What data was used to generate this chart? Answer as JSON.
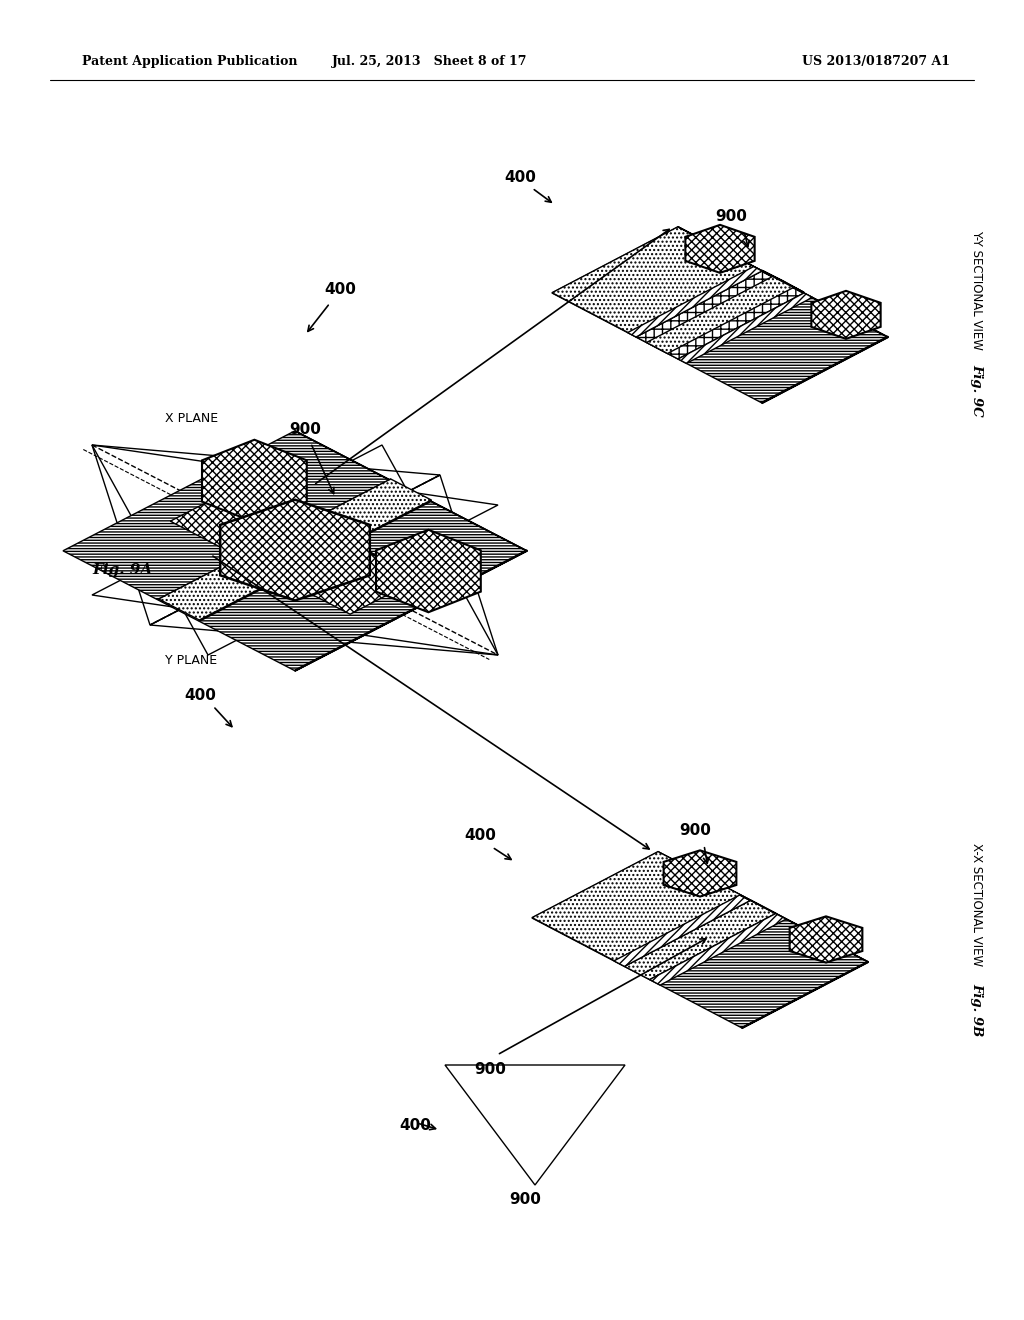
{
  "title_left": "Patent Application Publication",
  "title_mid": "Jul. 25, 2013   Sheet 8 of 17",
  "title_right": "US 2013/0187207 A1",
  "bg_color": "#ffffff",
  "line_color": "#000000",
  "fig9a_label": "Fig. 9A",
  "fig9b_label": "Fig. 9B",
  "fig9c_label": "Fig. 9C",
  "fig9b_title": "X-X SECTIONAL VIEW",
  "fig9c_title": "Y-Y SECTIONAL VIEW",
  "xplane_label": "X PLANE",
  "yplane_label": "Y PLANE"
}
